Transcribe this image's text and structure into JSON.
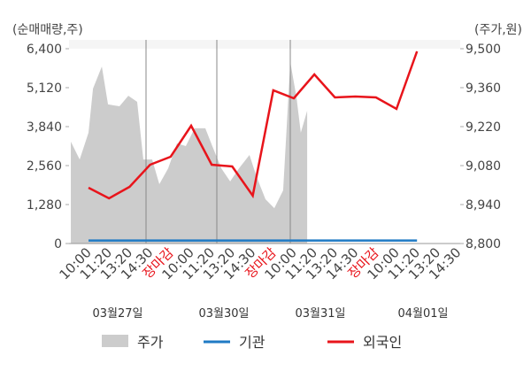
{
  "chart_data": {
    "type": "combo",
    "y_axis_label": "(순매매량,주)",
    "y2_axis_label": "(주가,원)",
    "categories": [
      "10:00",
      "11:20",
      "13:20",
      "14:30",
      "장마감",
      "10:00",
      "11:20",
      "13:20",
      "14:30",
      "장마감",
      "10:00",
      "11:20",
      "13:20",
      "14:30",
      "장마감",
      "10:00",
      "11:20",
      "13:20",
      "14:30"
    ],
    "days": [
      "03월27일",
      "03월30일",
      "03월31일",
      "04월01일"
    ],
    "ylim": [
      0,
      6400
    ],
    "yticks": [
      0,
      {
        "value": 1280,
        "label": "1,280"
      },
      {
        "value": 2560,
        "label": "2,560"
      },
      {
        "value": 3840,
        "label": "3,840"
      },
      {
        "value": 5120,
        "label": "5,120"
      },
      {
        "value": 6400,
        "label": "6,400"
      }
    ],
    "y2lim": [
      8800,
      9500
    ],
    "y2ticks": [
      {
        "value": 8800,
        "label": "8,800"
      },
      {
        "value": 8940,
        "label": "8,940"
      },
      {
        "value": 9080,
        "label": "9,080"
      },
      {
        "value": 9220,
        "label": "9,220"
      },
      {
        "value": 9360,
        "label": "9,360"
      },
      {
        "value": 9500,
        "label": "9,500"
      }
    ],
    "series": [
      {
        "name": "주가",
        "type": "area",
        "axis": "y2",
        "color": "#cccccc",
        "x": [
          -0.86,
          -0.43,
          0,
          0.22,
          0.65,
          0.95,
          1.51,
          1.94,
          2.37,
          2.67,
          3.1,
          3.45,
          3.88,
          4.31,
          4.74,
          5.17,
          5.69,
          6.03,
          6.47,
          6.9,
          7.33,
          7.84,
          8.19,
          8.62,
          9.05,
          9.48,
          9.83,
          10.13,
          10.34,
          10.65
        ],
        "values": [
          9166,
          9102,
          9198,
          9357,
          9436,
          9300,
          9293,
          9331,
          9309,
          9102,
          9102,
          9013,
          9070,
          9160,
          9150,
          9214,
          9214,
          9150,
          9070,
          9023,
          9070,
          9118,
          9039,
          8959,
          8927,
          8991,
          9452,
          9325,
          9198,
          9277
        ]
      },
      {
        "name": "기관",
        "type": "line",
        "color": "#1f7ac4",
        "values": [
          100,
          100,
          100,
          100,
          100,
          100,
          100,
          100,
          100,
          100,
          100,
          100,
          100,
          100,
          100,
          100,
          100,
          null,
          null
        ]
      },
      {
        "name": "외국인",
        "type": "line",
        "color": "#e8141b",
        "values": [
          1833,
          1484,
          1862,
          2589,
          2851,
          3869,
          2589,
          2531,
          1571,
          5033,
          4771,
          5556,
          4800,
          4829,
          4800,
          4422,
          6313,
          null,
          null
        ]
      }
    ]
  }
}
